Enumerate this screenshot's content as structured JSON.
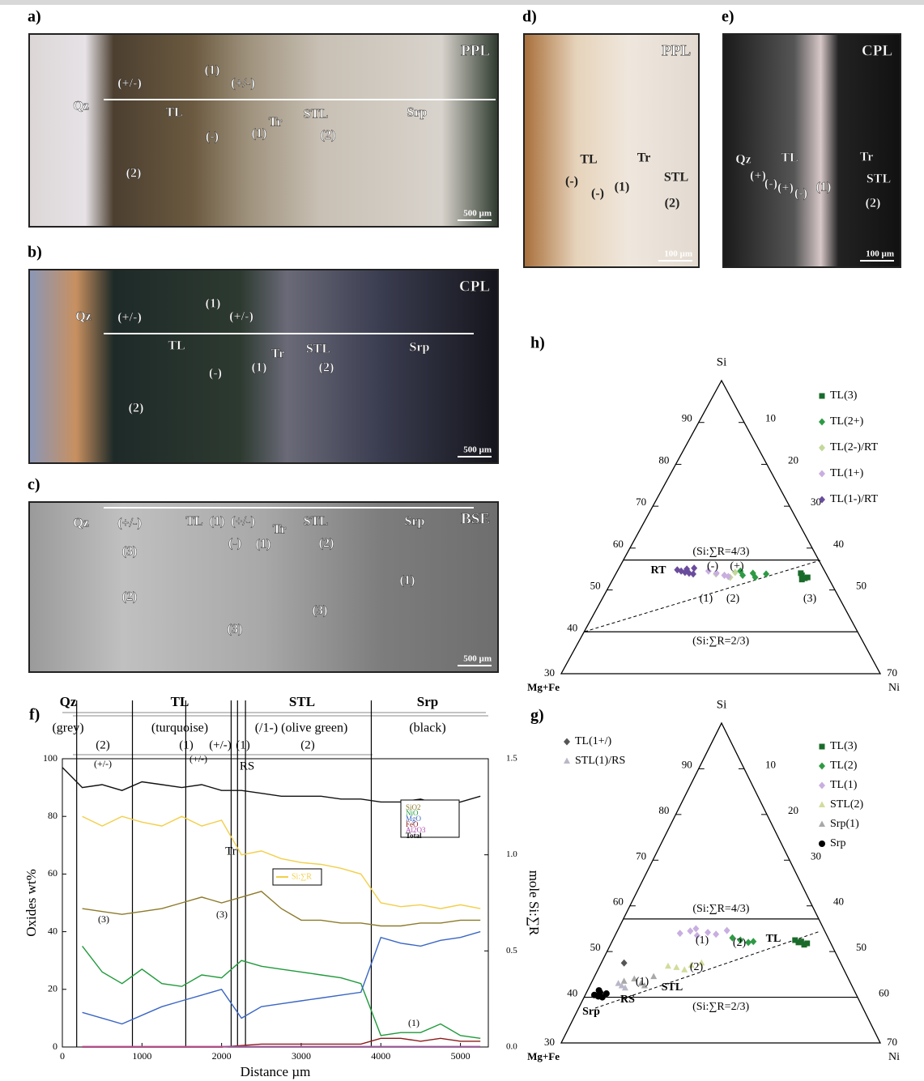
{
  "micrographs": [
    {
      "panel": "a)",
      "mode": "PPL",
      "scale": "500 µm",
      "labels": [
        "Qz",
        "(+/-)",
        "(1)",
        "(+/-)",
        "TL",
        "Tr",
        "STL",
        "Srp",
        "(1)",
        "(2)",
        "(-)",
        "(2)"
      ]
    },
    {
      "panel": "b)",
      "mode": "CPL",
      "scale": "500 µm",
      "labels": [
        "Qz",
        "(+/-)",
        "(1)",
        "(+/-)",
        "TL",
        "Tr",
        "STL",
        "Srp",
        "(1)",
        "(2)",
        "(-)",
        "(2)"
      ]
    },
    {
      "panel": "c)",
      "mode": "BSE",
      "scale": "500 µm",
      "labels": [
        "Qz",
        "(+/-)",
        "TL",
        "(1)",
        "(+/-)",
        "Tr",
        "(-)",
        "STL",
        "(2)",
        "(1)",
        "Srp",
        "(1)",
        "(3)",
        "(2)",
        "(3)",
        "(3)"
      ]
    },
    {
      "panel": "d)",
      "mode": "PPL",
      "scale": "100 µm",
      "labels": [
        "TL",
        "Tr",
        "STL",
        "(-)",
        "(-)",
        "(1)",
        "(2)"
      ]
    },
    {
      "panel": "e)",
      "mode": "CPL",
      "scale": "100 µm",
      "labels": [
        "Qz",
        "TL",
        "Tr",
        "STL",
        "(+)",
        "(-)",
        "(+)",
        "(-)",
        "(1)",
        "(2)"
      ]
    }
  ],
  "chart_data": [
    {
      "type": "line",
      "panel": "f)",
      "xlabel": "Distance µm",
      "ylabel": "Oxides wt%",
      "y2label": "mole Si:∑R",
      "x": [
        0,
        250,
        500,
        750,
        1000,
        1250,
        1500,
        1750,
        2000,
        2250,
        2500,
        2750,
        3000,
        3250,
        3500,
        3750,
        4000,
        4250,
        4500,
        4750,
        5000,
        5250
      ],
      "xlim": [
        0,
        5350
      ],
      "xticks": [
        0,
        1000,
        2000,
        3000,
        4000,
        5000
      ],
      "ylim": [
        0,
        100
      ],
      "yticks": [
        0,
        20,
        40,
        60,
        80,
        100
      ],
      "y2lim": [
        0,
        1.5
      ],
      "y2ticks": [
        {
          "value": 0,
          "label": "0.0"
        },
        {
          "value": 0.5,
          "label": "0.5"
        },
        {
          "value": 1,
          "label": "1.0"
        },
        1.5
      ],
      "zones": [
        {
          "name": "Qz",
          "desc": "(grey)"
        },
        {
          "name": "TL",
          "desc": "(turquoise)"
        },
        {
          "name": "STL",
          "desc": "(/1-) (olive green)"
        },
        {
          "name": "Srp",
          "desc": "(black)"
        }
      ],
      "subzones": [
        "(2)",
        "(1)",
        "(+/-)",
        "(1)",
        "(2)"
      ],
      "annotations": [
        "(+/-)",
        "(+/-)",
        "RS",
        "Tr",
        "(3)",
        "(3)",
        "(1)"
      ],
      "boundaries": [
        180,
        880,
        1550,
        2120,
        2200,
        2300,
        3880
      ],
      "series": [
        {
          "name": "SiO2",
          "color": "#8c7a2a",
          "values": [
            null,
            48,
            47,
            46,
            47,
            48,
            50,
            52,
            50,
            52,
            54,
            48,
            44,
            44,
            43,
            43,
            42,
            42,
            43,
            43,
            44,
            44
          ]
        },
        {
          "name": "NiO",
          "color": "#1f9a3a",
          "values": [
            null,
            35,
            26,
            22,
            27,
            22,
            21,
            25,
            24,
            30,
            28,
            27,
            26,
            25,
            24,
            22,
            4,
            5,
            5,
            8,
            4,
            3
          ]
        },
        {
          "name": "MgO",
          "color": "#3a66c4",
          "values": [
            null,
            12,
            10,
            8,
            11,
            14,
            16,
            18,
            20,
            10,
            14,
            15,
            16,
            17,
            18,
            19,
            38,
            36,
            35,
            37,
            38,
            40
          ]
        },
        {
          "name": "FeO",
          "color": "#8b1a1a",
          "values": [
            null,
            0,
            0,
            0,
            0,
            0,
            0,
            0,
            0,
            0.5,
            1,
            1,
            1,
            1,
            1,
            1,
            3,
            3,
            2,
            3,
            2,
            2
          ]
        },
        {
          "name": "Al2O3",
          "color": "#b04ab0",
          "values": [
            null,
            0.2,
            0.2,
            0.2,
            0.2,
            0.2,
            0.2,
            0.2,
            0.2,
            0.2,
            0.2,
            0.2,
            0.2,
            0.2,
            0.2,
            0.2,
            0.2,
            0.2,
            0.2,
            0.2,
            0.2,
            0.2
          ]
        },
        {
          "name": "Total",
          "color": "#111111",
          "values": [
            97,
            90,
            91,
            89,
            92,
            91,
            90,
            91,
            89,
            89,
            88,
            87,
            87,
            87,
            86,
            86,
            85,
            85,
            86,
            84,
            85,
            87
          ]
        },
        {
          "name": "Si:∑R",
          "color": "#f2cf4a",
          "axis": "y2",
          "values": [
            null,
            1.2,
            1.15,
            1.2,
            1.17,
            1.15,
            1.2,
            1.15,
            1.18,
            1.0,
            1.02,
            0.98,
            0.96,
            0.95,
            0.93,
            0.9,
            0.75,
            0.73,
            0.74,
            0.72,
            0.74,
            0.72
          ]
        }
      ]
    },
    {
      "type": "ternary",
      "panel": "h)",
      "top": "Si",
      "left": "Mg+Fe",
      "right": "Ni",
      "silim": [
        30,
        100
      ],
      "nilim": [
        0,
        70
      ],
      "left_ticks": [
        40,
        50,
        60,
        70,
        80,
        90
      ],
      "right_ticks": [
        10,
        20,
        30,
        40,
        50
      ],
      "legend": "upper right",
      "ratio_lines": [
        {
          "label": "(Si:∑R=4/3)",
          "si": 57.14
        },
        {
          "label": "(Si:∑R=2/3)",
          "si": 40
        }
      ],
      "annotations": [
        "RT",
        "(1)",
        "(2)",
        "(3)",
        "(-)",
        "(+)"
      ],
      "series": [
        {
          "name": "TL(3)",
          "color": "#1a6b2a",
          "marker": "square",
          "si": [
            53.5,
            52.8,
            54,
            53,
            52.5
          ],
          "ni": [
            41,
            42,
            40.5,
            42.5,
            41.5
          ]
        },
        {
          "name": "TL(2+)",
          "color": "#2e9a45",
          "marker": "diamond",
          "si": [
            53.5,
            54,
            53,
            54.5,
            53.8
          ],
          "ni": [
            28,
            30,
            31,
            27,
            33
          ]
        },
        {
          "name": "TL(2-)/RT",
          "color": "#c4d89a",
          "marker": "diamond",
          "si": [
            53.5,
            54.2,
            53,
            53.8
          ],
          "ni": [
            24,
            26,
            25.5,
            22
          ]
        },
        {
          "name": "TL(1+)",
          "color": "#c9aee0",
          "marker": "diamond",
          "si": [
            54,
            53.5,
            54.5,
            53.2
          ],
          "ni": [
            22,
            24,
            20,
            25
          ]
        },
        {
          "name": "TL(1-)/RT",
          "color": "#6a4c9c",
          "marker": "diamond",
          "si": [
            54.5,
            55,
            54,
            54.8,
            55.2,
            54.2,
            53.8
          ],
          "ni": [
            14,
            15,
            16,
            13,
            16.5,
            15,
            17
          ]
        }
      ]
    },
    {
      "type": "ternary",
      "panel": "g)",
      "top": "Si",
      "left": "Mg+Fe",
      "right": "Ni",
      "silim": [
        30,
        100
      ],
      "nilim": [
        0,
        70
      ],
      "left_ticks": [
        40,
        50,
        60,
        70,
        80,
        90
      ],
      "right_ticks": [
        10,
        20,
        30,
        40,
        50,
        60
      ],
      "legend": "upper right",
      "ratio_lines": [
        {
          "label": "(Si:∑R=4/3)",
          "si": 57.14
        },
        {
          "label": "(Si:∑R=2/3)",
          "si": 40
        }
      ],
      "annotations": [
        "(1)",
        "(2)",
        "TL",
        "(2)",
        "(1)",
        "STL",
        "RS",
        "Srp"
      ],
      "series": [
        {
          "name": "TL(3)",
          "color": "#1a6b2a",
          "marker": "square",
          "si": [
            52,
            51.5,
            52.5,
            51.8,
            52.2
          ],
          "ni": [
            41,
            42.5,
            40,
            43,
            41.5
          ]
        },
        {
          "name": "TL(2)",
          "color": "#2e9a45",
          "marker": "diamond",
          "si": [
            52.5,
            52,
            53,
            52.2
          ],
          "ni": [
            28,
            30,
            26,
            31
          ]
        },
        {
          "name": "TL(1)",
          "color": "#c9aee0",
          "marker": "diamond",
          "si": [
            54,
            54.5,
            53.5,
            54.2,
            55,
            53.8,
            54.6
          ],
          "ni": [
            14,
            16,
            18,
            20,
            17,
            22,
            24
          ]
        },
        {
          "name": "STL(2)",
          "color": "#d2dc9a",
          "marker": "triangle",
          "si": [
            46.5,
            47,
            46,
            47.5,
            46.8
          ],
          "ni": [
            17,
            20,
            19,
            22,
            15
          ]
        },
        {
          "name": "Srp(1)",
          "color": "#a8a8a8",
          "marker": "triangle",
          "si": [
            44,
            43,
            43.5,
            42.5,
            44.5
          ],
          "ni": [
            9,
            11,
            7,
            12,
            13
          ]
        },
        {
          "name": "Srp",
          "color": "#000000",
          "marker": "circle",
          "si": [
            40.5,
            41,
            40,
            41.5,
            40.8,
            40.2
          ],
          "ni": [
            2,
            3,
            4,
            2.5,
            4.5,
            3
          ]
        },
        {
          "name": "TL(1+/)",
          "color": "#555555",
          "marker": "diamond",
          "legend": "upper left",
          "si": [
            47.5
          ],
          "ni": [
            5
          ]
        },
        {
          "name": "STL(1)/RS",
          "color": "#b8b8c8",
          "marker": "triangle",
          "legend": "upper left",
          "si": [
            42.5,
            42,
            43
          ],
          "ni": [
            7,
            8,
            6
          ]
        }
      ]
    }
  ]
}
